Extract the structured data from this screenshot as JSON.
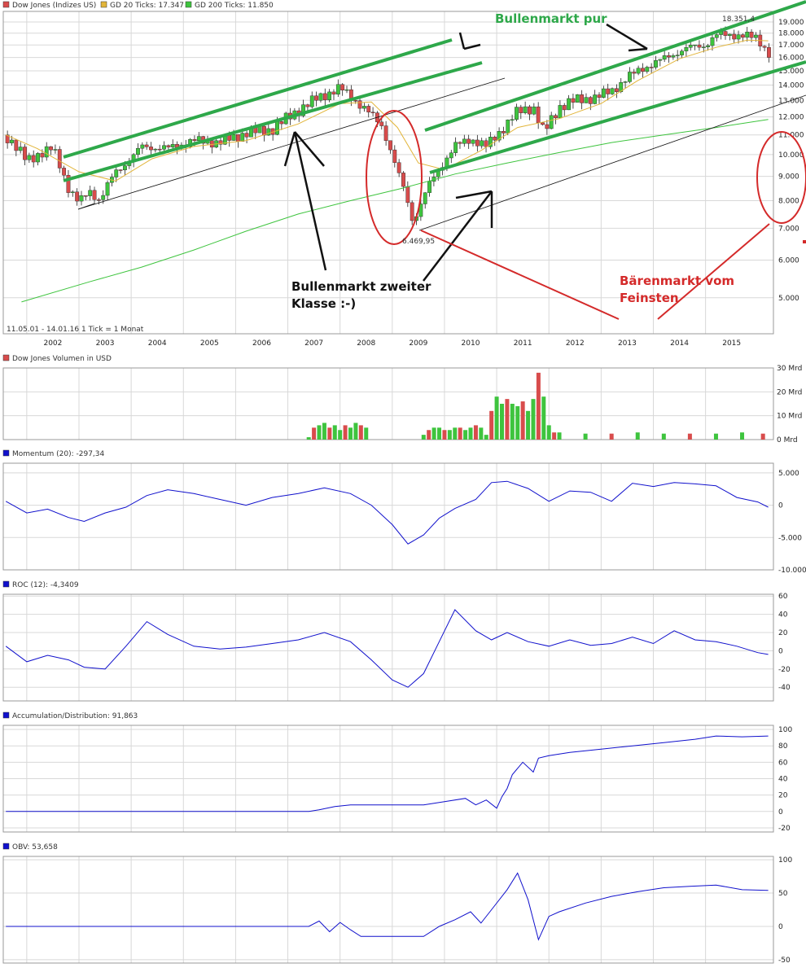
{
  "legend": {
    "main": [
      {
        "label": "Dow Jones (Indizes US)",
        "color": "#d84c4c"
      },
      {
        "label": "GD 20 Ticks: 17.347",
        "color": "#e2b53a"
      },
      {
        "label": "GD 200 Ticks: 11.850",
        "color": "#3ec43e"
      }
    ],
    "volume": "Dow Jones Volumen in USD",
    "momentum": "Momentum (20): -297,34",
    "roc": "ROC (12): -4,3409",
    "ad": "Accumulation/Distribution: 91,863",
    "obv": "OBV: 53,658"
  },
  "footer_info": "11.05.01 - 14.01.16   1 Tick = 1 Monat",
  "annotations": {
    "bull_pure": "Bullenmarkt pur",
    "bull_second_line1": "Bullenmarkt zweiter",
    "bull_second_line2": "Klasse :-)",
    "bear_line1": "Bärenmarkt vom",
    "bear_line2": "Feinsten",
    "low_value": "6.469,95",
    "high_value": "18.351,4"
  },
  "colors": {
    "up": "#3ec43e",
    "down": "#d84c4c",
    "gd20": "#e2b53a",
    "gd200": "#3ec43e",
    "indicator": "#1010cc",
    "channel": "#2ea84a",
    "annotation_red": "#d42a2a",
    "annotation_green": "#2ea84a"
  },
  "chart_data": [
    {
      "type": "line",
      "title": "Dow Jones (Indizes US)",
      "x_ticks": [
        "2002",
        "2003",
        "2004",
        "2005",
        "2006",
        "2007",
        "2008",
        "2009",
        "2010",
        "2011",
        "2012",
        "2013",
        "2014",
        "2015"
      ],
      "y_ticks": [
        "5.000",
        "6.000",
        "7.000",
        "8.000",
        "9.000",
        "10.000",
        "11.000",
        "12.000",
        "13.000",
        "14.000",
        "15.000",
        "16.000",
        "17.000",
        "18.000",
        "19.000"
      ],
      "scale": "log",
      "ylim": [
        4200,
        20000
      ],
      "series": [
        {
          "name": "Dow Jones (Indizes US)",
          "x": [
            2001.4,
            2001.8,
            2002.0,
            2002.3,
            2002.6,
            2002.8,
            2003.0,
            2003.2,
            2003.5,
            2003.8,
            2004.0,
            2004.5,
            2005.0,
            2005.5,
            2006.0,
            2006.5,
            2007.0,
            2007.4,
            2007.8,
            2008.2,
            2008.6,
            2008.9,
            2009.0,
            2009.2,
            2009.5,
            2009.8,
            2010.0,
            2010.3,
            2010.6,
            2010.9,
            2011.2,
            2011.5,
            2011.7,
            2012.0,
            2012.3,
            2012.7,
            2013.0,
            2013.3,
            2013.6,
            2013.9,
            2014.2,
            2014.5,
            2014.8,
            2015.0,
            2015.3,
            2015.6,
            2015.8,
            2016.0
          ],
          "values": [
            11000,
            9700,
            10000,
            10300,
            8500,
            7900,
            8400,
            8000,
            9200,
            9800,
            10400,
            10300,
            10700,
            10600,
            11100,
            11300,
            12400,
            13200,
            13800,
            12700,
            11500,
            9200,
            8600,
            7200,
            8600,
            9700,
            10400,
            10800,
            10400,
            11300,
            12300,
            12600,
            11100,
            12600,
            13000,
            13200,
            13600,
            14500,
            15200,
            15700,
            16300,
            16800,
            17000,
            17800,
            17900,
            17700,
            17600,
            16300
          ]
        },
        {
          "name": "GD 20 Ticks: 17.347",
          "x": [
            2001.4,
            2002.0,
            2002.8,
            2003.5,
            2004.2,
            2005.0,
            2006.0,
            2007.0,
            2007.8,
            2008.4,
            2008.9,
            2009.3,
            2009.8,
            2010.5,
            2011.2,
            2012.0,
            2012.8,
            2013.5,
            2014.3,
            2015.0,
            2015.6,
            2016.0
          ],
          "values": [
            11000,
            10300,
            9200,
            8800,
            9800,
            10400,
            10700,
            11600,
            12800,
            12900,
            11400,
            9600,
            9300,
            10200,
            11400,
            11900,
            12800,
            14300,
            15900,
            16800,
            17400,
            17350
          ]
        },
        {
          "name": "GD 200 Ticks: 11.850",
          "x": [
            2001.7,
            2003.0,
            2004.0,
            2005.0,
            2006.0,
            2007.0,
            2008.0,
            2009.0,
            2010.0,
            2011.0,
            2012.0,
            2013.0,
            2014.0,
            2015.0,
            2016.0
          ],
          "values": [
            4900,
            5400,
            5800,
            6300,
            6900,
            7500,
            8000,
            8500,
            9100,
            9600,
            10100,
            10600,
            11000,
            11400,
            11850
          ]
        }
      ]
    },
    {
      "type": "bar",
      "title": "Dow Jones Volumen in USD",
      "y_ticks": [
        "0 Mrd",
        "10 Mrd",
        "20 Mrd",
        "30 Mrd"
      ],
      "ylim": [
        0,
        30
      ],
      "x": [
        2007.2,
        2007.3,
        2007.4,
        2007.5,
        2007.6,
        2007.7,
        2007.8,
        2007.9,
        2008.0,
        2008.1,
        2008.2,
        2008.3,
        2009.4,
        2009.5,
        2009.6,
        2009.7,
        2009.8,
        2009.9,
        2010.0,
        2010.1,
        2010.2,
        2010.3,
        2010.4,
        2010.5,
        2010.6,
        2010.7,
        2010.8,
        2010.9,
        2011.0,
        2011.1,
        2011.2,
        2011.3,
        2011.4,
        2011.5,
        2011.6,
        2011.7,
        2011.8,
        2011.9,
        2012.0,
        2012.5,
        2013.0,
        2013.5,
        2014.0,
        2014.5,
        2015.0,
        2015.5,
        2015.9
      ],
      "values": [
        1,
        5,
        6,
        7,
        5,
        6,
        4,
        6,
        5,
        7,
        6,
        5,
        2,
        4,
        5,
        5,
        4,
        4,
        5,
        5,
        4,
        5,
        6,
        5,
        2,
        12,
        18,
        15,
        17,
        15,
        14,
        16,
        12,
        17,
        28,
        18,
        6,
        3,
        3,
        2.5,
        2.5,
        3,
        2.5,
        2.5,
        2.5,
        3,
        2.5
      ]
    },
    {
      "type": "line",
      "title": "Momentum (20): -297,34",
      "y_ticks": [
        "-10.000",
        "-5.000",
        "0",
        "5.000"
      ],
      "ylim": [
        -10000,
        6500
      ],
      "x": [
        2001.4,
        2001.8,
        2002.2,
        2002.6,
        2002.9,
        2003.3,
        2003.7,
        2004.1,
        2004.5,
        2005.0,
        2005.5,
        2006.0,
        2006.5,
        2007.0,
        2007.5,
        2008.0,
        2008.4,
        2008.8,
        2009.1,
        2009.4,
        2009.7,
        2010.0,
        2010.4,
        2010.7,
        2011.0,
        2011.4,
        2011.8,
        2012.2,
        2012.6,
        2013.0,
        2013.4,
        2013.8,
        2014.2,
        2014.6,
        2015.0,
        2015.4,
        2015.8,
        2016.0
      ],
      "values": [
        600,
        -1200,
        -600,
        -1900,
        -2500,
        -1200,
        -300,
        1500,
        2400,
        1800,
        900,
        0,
        1200,
        1800,
        2700,
        1800,
        0,
        -3000,
        -6000,
        -4600,
        -2000,
        -500,
        900,
        3500,
        3700,
        2600,
        600,
        2200,
        2000,
        600,
        3400,
        2900,
        3500,
        3300,
        3000,
        1200,
        500,
        -300
      ]
    },
    {
      "type": "line",
      "title": "ROC (12): -4,3409",
      "y_ticks": [
        "-40",
        "-20",
        "0",
        "20",
        "40",
        "60"
      ],
      "ylim": [
        -55,
        62
      ],
      "x": [
        2001.4,
        2001.8,
        2002.2,
        2002.6,
        2002.9,
        2003.3,
        2003.7,
        2004.1,
        2004.5,
        2005.0,
        2005.5,
        2006.0,
        2006.5,
        2007.0,
        2007.5,
        2008.0,
        2008.4,
        2008.8,
        2009.1,
        2009.4,
        2009.7,
        2010.0,
        2010.4,
        2010.7,
        2011.0,
        2011.4,
        2011.8,
        2012.2,
        2012.6,
        2013.0,
        2013.4,
        2013.8,
        2014.2,
        2014.6,
        2015.0,
        2015.4,
        2015.8,
        2016.0
      ],
      "values": [
        5,
        -12,
        -5,
        -10,
        -18,
        -20,
        5,
        32,
        18,
        5,
        2,
        4,
        8,
        12,
        20,
        10,
        -10,
        -32,
        -40,
        -25,
        10,
        45,
        22,
        12,
        20,
        10,
        5,
        12,
        6,
        8,
        15,
        8,
        22,
        12,
        10,
        5,
        -2,
        -4
      ]
    },
    {
      "type": "line",
      "title": "Accumulation/Distribution: 91,863",
      "y_ticks": [
        "-20",
        "0",
        "20",
        "40",
        "60",
        "80",
        "100"
      ],
      "ylim": [
        -25,
        105
      ],
      "x": [
        2001.4,
        2003.0,
        2005.0,
        2007.2,
        2007.4,
        2007.7,
        2008.0,
        2008.3,
        2009.4,
        2009.8,
        2010.2,
        2010.4,
        2010.6,
        2010.8,
        2010.9,
        2011.0,
        2011.1,
        2011.3,
        2011.5,
        2011.6,
        2011.8,
        2012.2,
        2012.8,
        2013.4,
        2014.0,
        2014.6,
        2015.0,
        2015.5,
        2016.0
      ],
      "values": [
        0,
        0,
        0,
        0,
        2,
        6,
        8,
        8,
        8,
        12,
        16,
        8,
        14,
        4,
        18,
        28,
        45,
        60,
        48,
        65,
        68,
        72,
        76,
        80,
        84,
        88,
        92,
        91,
        92
      ]
    },
    {
      "type": "line",
      "title": "OBV: 53,658",
      "y_ticks": [
        "-50",
        "0",
        "50",
        "100"
      ],
      "ylim": [
        -55,
        105
      ],
      "x": [
        2001.4,
        2003.0,
        2005.0,
        2007.2,
        2007.4,
        2007.6,
        2007.8,
        2008.0,
        2008.2,
        2009.4,
        2009.7,
        2010.0,
        2010.3,
        2010.5,
        2010.7,
        2011.0,
        2011.2,
        2011.4,
        2011.6,
        2011.8,
        2012.0,
        2012.5,
        2013.0,
        2013.5,
        2014.0,
        2014.5,
        2015.0,
        2015.5,
        2016.0
      ],
      "values": [
        0,
        0,
        0,
        0,
        8,
        -8,
        6,
        -5,
        -15,
        -15,
        0,
        10,
        22,
        5,
        25,
        55,
        80,
        40,
        -20,
        15,
        22,
        35,
        45,
        52,
        58,
        60,
        62,
        55,
        54
      ]
    }
  ]
}
